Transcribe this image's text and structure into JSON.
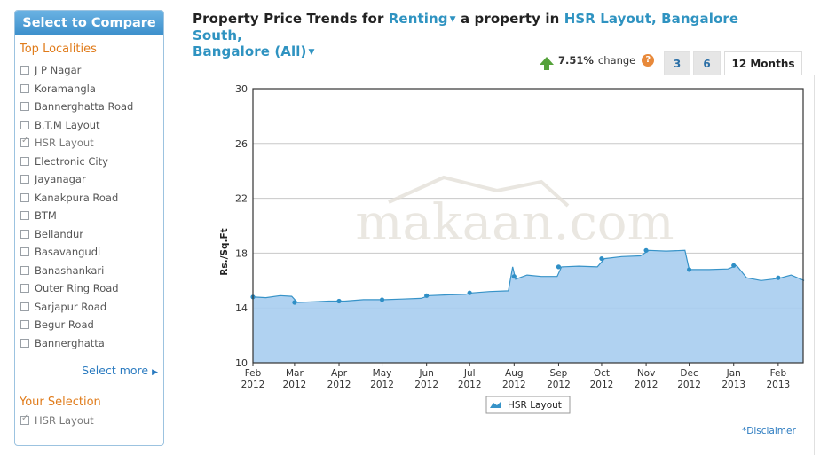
{
  "sidebar": {
    "header": "Select to Compare",
    "top_localities_title": "Top Localities",
    "items": [
      {
        "label": "J P Nagar",
        "checked": false
      },
      {
        "label": "Koramangla",
        "checked": false
      },
      {
        "label": "Bannerghatta Road",
        "checked": false
      },
      {
        "label": "B.T.M Layout",
        "checked": false
      },
      {
        "label": "HSR Layout",
        "checked": true
      },
      {
        "label": "Electronic City",
        "checked": false
      },
      {
        "label": "Jayanagar",
        "checked": false
      },
      {
        "label": "Kanakpura Road",
        "checked": false
      },
      {
        "label": "BTM",
        "checked": false
      },
      {
        "label": "Bellandur",
        "checked": false
      },
      {
        "label": "Basavangudi",
        "checked": false
      },
      {
        "label": "Banashankari",
        "checked": false
      },
      {
        "label": "Outer Ring Road",
        "checked": false
      },
      {
        "label": "Sarjapur Road",
        "checked": false
      },
      {
        "label": "Begur Road",
        "checked": false
      },
      {
        "label": "Bannerghatta",
        "checked": false
      }
    ],
    "select_more": "Select more",
    "your_selection_title": "Your Selection",
    "your_selection_item": "HSR Layout"
  },
  "title": {
    "prefix": "Property Price Trends for",
    "mode": "Renting",
    "middle": "a property in",
    "location": "HSR Layout, Bangalore South,",
    "city": "Bangalore (All)"
  },
  "change": {
    "value": "7.51%",
    "label": "change",
    "help": "?",
    "direction": "up"
  },
  "tabs": [
    {
      "label": "3",
      "active": false
    },
    {
      "label": "6",
      "active": false
    },
    {
      "label": "12 Months",
      "active": true
    }
  ],
  "watermark": "makaan.com",
  "disclaimer": "*Disclaimer",
  "colors": {
    "area_fill": "#a7cdf0",
    "area_line": "#3793c8",
    "marker": "#2f8fc6",
    "link": "#2f93c1"
  },
  "chart_data": {
    "type": "area",
    "ylabel": "Rs./Sq.Ft",
    "xlabel": "",
    "ylim": [
      10,
      30
    ],
    "yticks": [
      10,
      14,
      18,
      22,
      26,
      30
    ],
    "x_labels": [
      {
        "month": "Feb",
        "year": "2012"
      },
      {
        "month": "Mar",
        "year": "2012"
      },
      {
        "month": "Apr",
        "year": "2012"
      },
      {
        "month": "May",
        "year": "2012"
      },
      {
        "month": "Jun",
        "year": "2012"
      },
      {
        "month": "Jul",
        "year": "2012"
      },
      {
        "month": "Aug",
        "year": "2012"
      },
      {
        "month": "Sep",
        "year": "2012"
      },
      {
        "month": "Oct",
        "year": "2012"
      },
      {
        "month": "Nov",
        "year": "2012"
      },
      {
        "month": "Dec",
        "year": "2012"
      },
      {
        "month": "Jan",
        "year": "2013"
      },
      {
        "month": "Feb",
        "year": "2013"
      }
    ],
    "x_range": [
      "2012-02",
      "2013-02 + 0.6 month"
    ],
    "series": [
      {
        "name": "HSR Layout",
        "points": [
          [
            "2012-02-01",
            14.8
          ],
          [
            "2012-02-10",
            14.75
          ],
          [
            "2012-02-20",
            14.9
          ],
          [
            "2012-02-28",
            14.85
          ],
          [
            "2012-03-03",
            14.4
          ],
          [
            "2012-03-15",
            14.45
          ],
          [
            "2012-03-25",
            14.5
          ],
          [
            "2012-04-05",
            14.5
          ],
          [
            "2012-04-18",
            14.6
          ],
          [
            "2012-04-28",
            14.6
          ],
          [
            "2012-05-03",
            14.6
          ],
          [
            "2012-05-15",
            14.65
          ],
          [
            "2012-05-28",
            14.7
          ],
          [
            "2012-06-03",
            14.9
          ],
          [
            "2012-06-15",
            14.95
          ],
          [
            "2012-06-28",
            15.0
          ],
          [
            "2012-07-03",
            15.1
          ],
          [
            "2012-07-15",
            15.2
          ],
          [
            "2012-07-28",
            15.25
          ],
          [
            "2012-07-31",
            17.0
          ],
          [
            "2012-08-02",
            16.1
          ],
          [
            "2012-08-10",
            16.4
          ],
          [
            "2012-08-20",
            16.3
          ],
          [
            "2012-08-31",
            16.3
          ],
          [
            "2012-09-03",
            17.0
          ],
          [
            "2012-09-15",
            17.05
          ],
          [
            "2012-09-28",
            17.0
          ],
          [
            "2012-10-03",
            17.6
          ],
          [
            "2012-10-15",
            17.75
          ],
          [
            "2012-10-28",
            17.8
          ],
          [
            "2012-11-03",
            18.2
          ],
          [
            "2012-11-15",
            18.15
          ],
          [
            "2012-11-28",
            18.2
          ],
          [
            "2012-12-01",
            16.8
          ],
          [
            "2012-12-15",
            16.8
          ],
          [
            "2012-12-28",
            16.85
          ],
          [
            "2013-01-03",
            17.1
          ],
          [
            "2013-01-10",
            16.2
          ],
          [
            "2013-01-20",
            16.0
          ],
          [
            "2013-01-28",
            16.1
          ],
          [
            "2013-02-03",
            16.2
          ],
          [
            "2013-02-10",
            16.4
          ],
          [
            "2013-02-19",
            16.0
          ]
        ],
        "markers": [
          [
            "2012-02-01",
            14.8
          ],
          [
            "2012-03-01",
            14.4
          ],
          [
            "2012-04-01",
            14.5
          ],
          [
            "2012-05-01",
            14.6
          ],
          [
            "2012-06-01",
            14.9
          ],
          [
            "2012-07-01",
            15.1
          ],
          [
            "2012-08-01",
            16.3
          ],
          [
            "2012-09-01",
            17.0
          ],
          [
            "2012-10-01",
            17.6
          ],
          [
            "2012-11-01",
            18.2
          ],
          [
            "2012-12-01",
            16.8
          ],
          [
            "2013-01-01",
            17.1
          ],
          [
            "2013-02-01",
            16.2
          ]
        ]
      }
    ],
    "legend": {
      "position": "bottom-center",
      "entries": [
        "HSR Layout"
      ]
    },
    "grid": {
      "horizontal": true,
      "vertical": false
    }
  }
}
